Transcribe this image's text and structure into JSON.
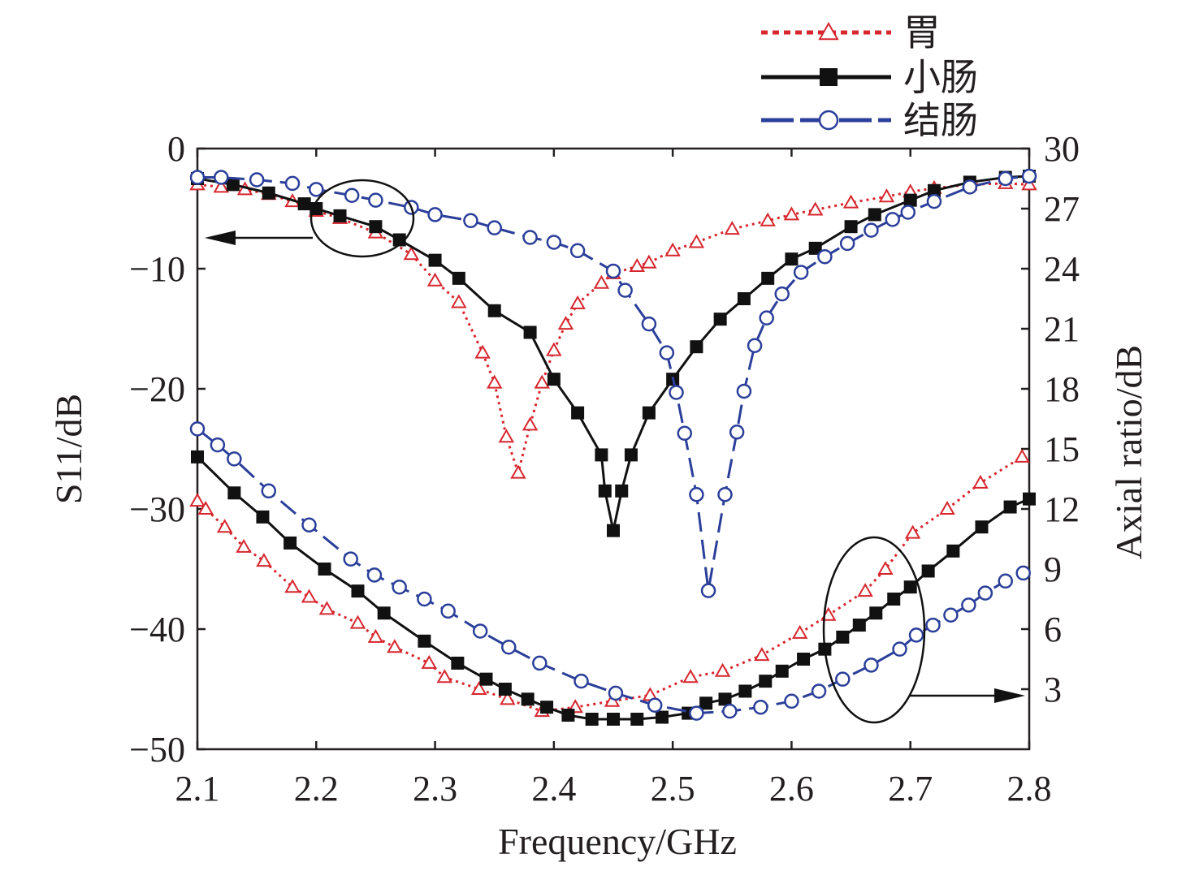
{
  "chart_data": {
    "type": "line",
    "xlabel": "Frequency/GHz",
    "ylabel_left": "S11/dB",
    "ylabel_right": "Axial ratio/dB",
    "xlim": [
      2.1,
      2.8
    ],
    "ylim_left": [
      -50,
      0
    ],
    "ylim_right": [
      0,
      30
    ],
    "x_ticks": [
      "2.1",
      "2.2",
      "2.3",
      "2.4",
      "2.5",
      "2.6",
      "2.7",
      "2.8"
    ],
    "y_ticks_left": [
      "0",
      "−10",
      "−20",
      "−30",
      "−40",
      "−50"
    ],
    "y_ticks_right": [
      "30",
      "27",
      "24",
      "21",
      "18",
      "15",
      "12",
      "9",
      "6",
      "3"
    ],
    "grid": false,
    "legend_position": "top-right",
    "colors": {
      "stomach": "#d7262e",
      "small_intestine": "#111111",
      "colon": "#2b3f9a"
    },
    "legend": [
      {
        "name": "胃",
        "marker": "triangle-open",
        "style": "dotted"
      },
      {
        "name": "小肠",
        "marker": "square-filled",
        "style": "solid"
      },
      {
        "name": "结肠",
        "marker": "circle-open",
        "style": "dashed"
      }
    ],
    "series": [
      {
        "name": "胃",
        "axis": "left",
        "quantity": "S11",
        "x": [
          2.1,
          2.12,
          2.14,
          2.16,
          2.18,
          2.2,
          2.22,
          2.25,
          2.28,
          2.3,
          2.32,
          2.34,
          2.35,
          2.36,
          2.37,
          2.38,
          2.39,
          2.4,
          2.41,
          2.42,
          2.44,
          2.45,
          2.47,
          2.48,
          2.5,
          2.52,
          2.55,
          2.58,
          2.6,
          2.62,
          2.65,
          2.68,
          2.7,
          2.72,
          2.75,
          2.78,
          2.8
        ],
        "y": [
          -3,
          -3.2,
          -3.4,
          -3.8,
          -4.4,
          -5.2,
          -5.8,
          -7,
          -8.8,
          -11,
          -12.8,
          -17,
          -19.5,
          -24,
          -27,
          -23,
          -19.5,
          -16.8,
          -14.6,
          -12.9,
          -11.2,
          -10.4,
          -9.8,
          -9.5,
          -8.5,
          -7.8,
          -6.7,
          -6,
          -5.5,
          -5.1,
          -4.5,
          -4,
          -3.6,
          -3.3,
          -3,
          -2.9,
          -3
        ]
      },
      {
        "name": "小肠",
        "axis": "left",
        "quantity": "S11",
        "x": [
          2.1,
          2.13,
          2.16,
          2.19,
          2.2,
          2.22,
          2.25,
          2.27,
          2.3,
          2.32,
          2.35,
          2.38,
          2.4,
          2.42,
          2.44,
          2.443,
          2.45,
          2.457,
          2.465,
          2.48,
          2.5,
          2.52,
          2.54,
          2.56,
          2.58,
          2.6,
          2.62,
          2.65,
          2.67,
          2.7,
          2.72,
          2.75,
          2.78,
          2.8
        ],
        "y": [
          -2.5,
          -3,
          -3.7,
          -4.6,
          -5,
          -5.6,
          -6.5,
          -7.6,
          -9.3,
          -10.8,
          -13.5,
          -15.3,
          -19.2,
          -22,
          -25.5,
          -28.5,
          -31.8,
          -28.5,
          -25.5,
          -22,
          -19.2,
          -16.5,
          -14.2,
          -12.5,
          -10.8,
          -9.2,
          -8.3,
          -6.5,
          -5.5,
          -4.3,
          -3.5,
          -2.8,
          -2.4,
          -2.3
        ]
      },
      {
        "name": "结肠",
        "axis": "left",
        "quantity": "S11",
        "x": [
          2.1,
          2.12,
          2.15,
          2.18,
          2.2,
          2.23,
          2.25,
          2.28,
          2.3,
          2.33,
          2.35,
          2.38,
          2.4,
          2.42,
          2.45,
          2.46,
          2.48,
          2.495,
          2.503,
          2.51,
          2.52,
          2.53,
          2.544,
          2.554,
          2.56,
          2.569,
          2.579,
          2.592,
          2.608,
          2.628,
          2.647,
          2.667,
          2.685,
          2.698,
          2.72,
          2.75,
          2.78,
          2.8
        ],
        "y": [
          -2.4,
          -2.4,
          -2.6,
          -2.9,
          -3.4,
          -3.9,
          -4.3,
          -4.9,
          -5.5,
          -6,
          -6.6,
          -7.4,
          -7.8,
          -8.5,
          -10.2,
          -11.8,
          -14.6,
          -17,
          -20.3,
          -23.7,
          -28.8,
          -36.8,
          -28.8,
          -23.6,
          -20.2,
          -16.4,
          -14.1,
          -12.1,
          -10.3,
          -9,
          -7.9,
          -6.8,
          -5.9,
          -5.3,
          -4.4,
          -3.2,
          -2.5,
          -2.3
        ]
      },
      {
        "name": "胃",
        "axis": "right",
        "quantity": "Axial ratio",
        "x": [
          2.1,
          2.107,
          2.123,
          2.139,
          2.156,
          2.18,
          2.194,
          2.209,
          2.235,
          2.25,
          2.266,
          2.295,
          2.308,
          2.337,
          2.361,
          2.39,
          2.418,
          2.449,
          2.481,
          2.515,
          2.542,
          2.575,
          2.607,
          2.631,
          2.662,
          2.679,
          2.702,
          2.731,
          2.759,
          2.794
        ],
        "y": [
          12.4,
          12.0,
          11.1,
          10.1,
          9.4,
          8.1,
          7.6,
          7.0,
          6.3,
          5.6,
          5.1,
          4.3,
          3.6,
          3.0,
          2.5,
          1.9,
          2.1,
          2.4,
          2.7,
          3.6,
          3.9,
          4.7,
          5.8,
          6.7,
          7.9,
          9.0,
          10.8,
          12.0,
          13.3,
          14.6
        ]
      },
      {
        "name": "小肠",
        "axis": "right",
        "quantity": "Axial ratio",
        "x": [
          2.1,
          2.131,
          2.155,
          2.178,
          2.207,
          2.235,
          2.257,
          2.291,
          2.319,
          2.343,
          2.359,
          2.378,
          2.394,
          2.412,
          2.432,
          2.45,
          2.47,
          2.491,
          2.513,
          2.528,
          2.544,
          2.561,
          2.578,
          2.592,
          2.61,
          2.628,
          2.643,
          2.657,
          2.671,
          2.686,
          2.7,
          2.715,
          2.736,
          2.76,
          2.784,
          2.8
        ],
        "y": [
          14.6,
          12.8,
          11.6,
          10.3,
          9.0,
          7.9,
          6.8,
          5.4,
          4.3,
          3.5,
          3.0,
          2.5,
          2.1,
          1.7,
          1.5,
          1.5,
          1.5,
          1.6,
          1.8,
          2.3,
          2.5,
          2.9,
          3.4,
          3.9,
          4.5,
          5.0,
          5.6,
          6.2,
          6.8,
          7.5,
          8.1,
          8.9,
          9.9,
          11.1,
          12.1,
          12.5
        ]
      },
      {
        "name": "结肠",
        "axis": "right",
        "quantity": "Axial ratio",
        "x": [
          2.1,
          2.117,
          2.131,
          2.16,
          2.194,
          2.229,
          2.249,
          2.27,
          2.291,
          2.311,
          2.338,
          2.362,
          2.388,
          2.423,
          2.452,
          2.485,
          2.52,
          2.548,
          2.574,
          2.6,
          2.623,
          2.643,
          2.667,
          2.691,
          2.705,
          2.719,
          2.734,
          2.749,
          2.763,
          2.78,
          2.795
        ],
        "y": [
          16.0,
          15.2,
          14.5,
          12.9,
          11.2,
          9.5,
          8.7,
          8.1,
          7.5,
          6.9,
          5.9,
          5.1,
          4.3,
          3.4,
          2.8,
          2.2,
          1.8,
          1.9,
          2.1,
          2.4,
          2.9,
          3.5,
          4.2,
          5.0,
          5.7,
          6.2,
          6.7,
          7.2,
          7.8,
          8.4,
          8.8
        ]
      }
    ]
  }
}
